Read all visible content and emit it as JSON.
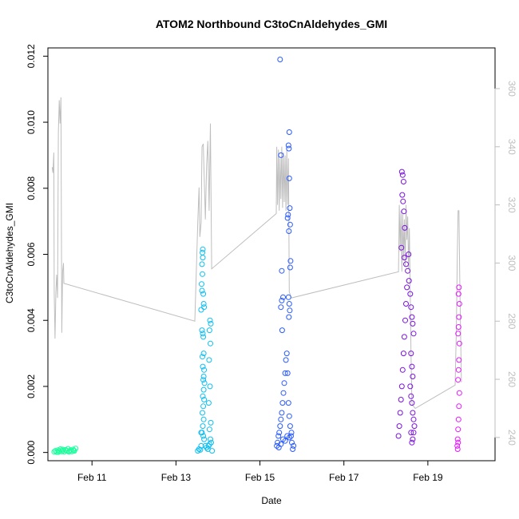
{
  "chart_data": {
    "type": "scatter",
    "title": "ATOM2 Northbound C3toCnAldehydes_GMI",
    "xlabel": "Date",
    "ylabel": "C3toCnAldehydes_GMI",
    "x_unit": "day of February (UTC, fractional)",
    "xlim": [
      9.95,
      20.6
    ],
    "ylim": [
      -0.00025,
      0.01225
    ],
    "y2lim": [
      232,
      374
    ],
    "x_ticks": [
      {
        "value": 11,
        "label": "Feb 11"
      },
      {
        "value": 13,
        "label": "Feb 13"
      },
      {
        "value": 15,
        "label": "Feb 15"
      },
      {
        "value": 17,
        "label": "Feb 17"
      },
      {
        "value": 19,
        "label": "Feb 19"
      }
    ],
    "y_ticks": [
      {
        "value": 0.0,
        "label": "0.000"
      },
      {
        "value": 0.002,
        "label": "0.002"
      },
      {
        "value": 0.004,
        "label": "0.004"
      },
      {
        "value": 0.006,
        "label": "0.006"
      },
      {
        "value": 0.008,
        "label": "0.008"
      },
      {
        "value": 0.01,
        "label": "0.010"
      },
      {
        "value": 0.012,
        "label": "0.012"
      }
    ],
    "y2_ticks": [
      {
        "value": 240,
        "label": "240"
      },
      {
        "value": 260,
        "label": "260"
      },
      {
        "value": 280,
        "label": "280"
      },
      {
        "value": 300,
        "label": "300"
      },
      {
        "value": 320,
        "label": "320"
      },
      {
        "value": 340,
        "label": "340"
      },
      {
        "value": 360,
        "label": "360"
      }
    ],
    "grid": false,
    "colors": {
      "axis": "#000000",
      "secondary_axis": "#bebebe",
      "secondary_series": "#bebebe"
    },
    "flights": [
      {
        "color": "#1aff9c",
        "points": [
          [
            10.1,
            2e-05
          ],
          [
            10.13,
            5e-05
          ],
          [
            10.16,
            1e-05
          ],
          [
            10.19,
            7e-05
          ],
          [
            10.22,
            4e-05
          ],
          [
            10.25,
            0.0001
          ],
          [
            10.28,
            3e-05
          ],
          [
            10.31,
            6e-05
          ],
          [
            10.34,
            2e-05
          ],
          [
            10.37,
            8e-05
          ],
          [
            10.4,
            5e-05
          ],
          [
            10.43,
            0.00011
          ],
          [
            10.46,
            4e-05
          ],
          [
            10.49,
            7e-05
          ],
          [
            10.52,
            3e-05
          ],
          [
            10.55,
            9e-05
          ],
          [
            10.58,
            5e-05
          ],
          [
            10.61,
            0.00012
          ],
          [
            10.2,
            1e-05
          ],
          [
            10.3,
            9e-05
          ],
          [
            10.45,
            2e-05
          ],
          [
            10.56,
            6e-05
          ]
        ]
      },
      {
        "color": "#0fbff0",
        "points": [
          [
            13.52,
            5e-05
          ],
          [
            13.55,
            0.0001
          ],
          [
            13.58,
            8e-05
          ],
          [
            13.6,
            0.0002
          ],
          [
            13.6,
            0.0006
          ],
          [
            13.6,
            0.00432
          ],
          [
            13.61,
            0.0051
          ],
          [
            13.62,
            0.0057
          ],
          [
            13.63,
            0.00605
          ],
          [
            13.64,
            0.00615
          ],
          [
            13.64,
            0.0059
          ],
          [
            13.63,
            0.0054
          ],
          [
            13.62,
            0.0049
          ],
          [
            13.65,
            0.0048
          ],
          [
            13.66,
            0.0045
          ],
          [
            13.67,
            0.0044
          ],
          [
            13.62,
            0.0037
          ],
          [
            13.64,
            0.0036
          ],
          [
            13.65,
            0.0035
          ],
          [
            13.63,
            0.0029
          ],
          [
            13.66,
            0.003
          ],
          [
            13.64,
            0.0026
          ],
          [
            13.67,
            0.0025
          ],
          [
            13.66,
            0.0023
          ],
          [
            13.65,
            0.0022
          ],
          [
            13.68,
            0.0021
          ],
          [
            13.66,
            0.0019
          ],
          [
            13.64,
            0.0017
          ],
          [
            13.67,
            0.0016
          ],
          [
            13.65,
            0.0014
          ],
          [
            13.63,
            0.0012
          ],
          [
            13.66,
            0.001
          ],
          [
            13.64,
            0.0008
          ],
          [
            13.62,
            0.0006
          ],
          [
            13.65,
            0.0005
          ],
          [
            13.67,
            0.0004
          ],
          [
            13.7,
            0.0002
          ],
          [
            13.73,
            0.00015
          ],
          [
            13.76,
            0.0001
          ],
          [
            13.78,
            0.0002
          ],
          [
            13.8,
            0.00025
          ],
          [
            13.82,
            0.0004
          ],
          [
            13.8,
            0.0007
          ],
          [
            13.83,
            0.0009
          ],
          [
            13.78,
            0.0015
          ],
          [
            13.81,
            0.002
          ],
          [
            13.79,
            0.0028
          ],
          [
            13.82,
            0.0033
          ],
          [
            13.8,
            0.0037
          ],
          [
            13.83,
            0.0039
          ],
          [
            13.81,
            0.004
          ],
          [
            13.84,
            0.0003
          ],
          [
            13.86,
            5e-05
          ]
        ]
      },
      {
        "color": "#2a5bff",
        "points": [
          [
            15.4,
            0.0002
          ],
          [
            15.42,
            0.0003
          ],
          [
            15.44,
            0.0005
          ],
          [
            15.46,
            0.0006
          ],
          [
            15.48,
            0.0008
          ],
          [
            15.5,
            0.001
          ],
          [
            15.52,
            0.0012
          ],
          [
            15.54,
            0.0015
          ],
          [
            15.56,
            0.0018
          ],
          [
            15.58,
            0.0021
          ],
          [
            15.6,
            0.0024
          ],
          [
            15.62,
            0.0028
          ],
          [
            15.64,
            0.003
          ],
          [
            15.66,
            0.0024
          ],
          [
            15.68,
            0.0015
          ],
          [
            15.7,
            0.0011
          ],
          [
            15.72,
            0.0008
          ],
          [
            15.74,
            0.0005
          ],
          [
            15.76,
            0.0003
          ],
          [
            15.78,
            0.0001
          ],
          [
            15.8,
            0.0002
          ],
          [
            15.45,
            0.00015
          ],
          [
            15.5,
            0.00025
          ],
          [
            15.55,
            0.0004
          ],
          [
            15.6,
            0.00035
          ],
          [
            15.65,
            0.0005
          ],
          [
            15.7,
            0.00045
          ],
          [
            15.75,
            0.0006
          ],
          [
            15.48,
            0.0119
          ],
          [
            15.5,
            0.009
          ],
          [
            15.52,
            0.0055
          ],
          [
            15.5,
            0.0044
          ],
          [
            15.52,
            0.0046
          ],
          [
            15.55,
            0.0047
          ],
          [
            15.53,
            0.0037
          ],
          [
            15.7,
            0.0097
          ],
          [
            15.68,
            0.0093
          ],
          [
            15.69,
            0.0092
          ],
          [
            15.7,
            0.0083
          ],
          [
            15.71,
            0.0074
          ],
          [
            15.67,
            0.0072
          ],
          [
            15.66,
            0.0071
          ],
          [
            15.72,
            0.0069
          ],
          [
            15.69,
            0.0067
          ],
          [
            15.73,
            0.0058
          ],
          [
            15.72,
            0.0056
          ],
          [
            15.68,
            0.0047
          ],
          [
            15.7,
            0.0045
          ],
          [
            15.71,
            0.0043
          ],
          [
            15.69,
            0.0041
          ]
        ]
      },
      {
        "color": "#7b12e0",
        "points": [
          [
            18.3,
            0.0005
          ],
          [
            18.32,
            0.0008
          ],
          [
            18.34,
            0.0012
          ],
          [
            18.36,
            0.0016
          ],
          [
            18.38,
            0.002
          ],
          [
            18.4,
            0.0025
          ],
          [
            18.42,
            0.003
          ],
          [
            18.44,
            0.0035
          ],
          [
            18.46,
            0.004
          ],
          [
            18.48,
            0.0045
          ],
          [
            18.5,
            0.005
          ],
          [
            18.52,
            0.0055
          ],
          [
            18.54,
            0.006
          ],
          [
            18.38,
            0.0085
          ],
          [
            18.4,
            0.0084
          ],
          [
            18.42,
            0.0082
          ],
          [
            18.39,
            0.0078
          ],
          [
            18.41,
            0.0076
          ],
          [
            18.43,
            0.0073
          ],
          [
            18.45,
            0.0068
          ],
          [
            18.37,
            0.0062
          ],
          [
            18.44,
            0.0059
          ],
          [
            18.48,
            0.0057
          ],
          [
            18.55,
            0.0052
          ],
          [
            18.58,
            0.0048
          ],
          [
            18.6,
            0.0044
          ],
          [
            18.62,
            0.0041
          ],
          [
            18.64,
            0.0039
          ],
          [
            18.66,
            0.0036
          ],
          [
            18.6,
            0.003
          ],
          [
            18.62,
            0.0026
          ],
          [
            18.64,
            0.0023
          ],
          [
            18.58,
            0.002
          ],
          [
            18.6,
            0.0017
          ],
          [
            18.62,
            0.0015
          ],
          [
            18.64,
            0.0012
          ],
          [
            18.66,
            0.001
          ],
          [
            18.68,
            0.0008
          ],
          [
            18.66,
            0.0006
          ],
          [
            18.64,
            0.0004
          ],
          [
            18.62,
            0.0003
          ],
          [
            18.6,
            0.0006
          ]
        ]
      },
      {
        "color": "#e619ff",
        "points": [
          [
            19.7,
            0.0002
          ],
          [
            19.71,
            0.0004
          ],
          [
            19.72,
            0.0007
          ],
          [
            19.73,
            0.001
          ],
          [
            19.74,
            0.0014
          ],
          [
            19.75,
            0.0018
          ],
          [
            19.72,
            0.0022
          ],
          [
            19.73,
            0.0025
          ],
          [
            19.74,
            0.0028
          ],
          [
            19.75,
            0.0033
          ],
          [
            19.72,
            0.0036
          ],
          [
            19.73,
            0.0038
          ],
          [
            19.74,
            0.0041
          ],
          [
            19.75,
            0.0045
          ],
          [
            19.73,
            0.0048
          ],
          [
            19.74,
            0.005
          ],
          [
            19.72,
            0.0003
          ],
          [
            19.71,
            0.0001
          ]
        ]
      }
    ],
    "secondary_series": [
      [
        10.05,
        333
      ],
      [
        10.07,
        331
      ],
      [
        10.09,
        338
      ],
      [
        10.1,
        290
      ],
      [
        10.12,
        274
      ],
      [
        10.14,
        290
      ],
      [
        10.16,
        296
      ],
      [
        10.18,
        288
      ],
      [
        10.2,
        345
      ],
      [
        10.22,
        356
      ],
      [
        10.24,
        348
      ],
      [
        10.26,
        357
      ],
      [
        10.27,
        320
      ],
      [
        10.28,
        276
      ],
      [
        10.3,
        297
      ],
      [
        10.32,
        300
      ],
      [
        10.33,
        293
      ],
      [
        13.45,
        280
      ],
      [
        13.52,
        314
      ],
      [
        13.55,
        326
      ],
      [
        13.57,
        309
      ],
      [
        13.6,
        314
      ],
      [
        13.62,
        340
      ],
      [
        13.65,
        341
      ],
      [
        13.7,
        315
      ],
      [
        13.73,
        334
      ],
      [
        13.76,
        342
      ],
      [
        13.79,
        318
      ],
      [
        13.82,
        348
      ],
      [
        13.85,
        298
      ],
      [
        15.39,
        317
      ],
      [
        15.4,
        340
      ],
      [
        15.42,
        320
      ],
      [
        15.44,
        339
      ],
      [
        15.46,
        318
      ],
      [
        15.48,
        336
      ],
      [
        15.5,
        322
      ],
      [
        15.52,
        340
      ],
      [
        15.54,
        319
      ],
      [
        15.56,
        338
      ],
      [
        15.58,
        321
      ],
      [
        15.6,
        337
      ],
      [
        15.62,
        318
      ],
      [
        15.64,
        339
      ],
      [
        15.66,
        320
      ],
      [
        15.68,
        336
      ],
      [
        15.7,
        290
      ],
      [
        15.75,
        288
      ],
      [
        18.3,
        297
      ],
      [
        18.32,
        320
      ],
      [
        18.34,
        304
      ],
      [
        18.36,
        318
      ],
      [
        18.38,
        297
      ],
      [
        18.4,
        317
      ],
      [
        18.42,
        301
      ],
      [
        18.44,
        315
      ],
      [
        18.46,
        299
      ],
      [
        18.48,
        320
      ],
      [
        18.5,
        308
      ],
      [
        18.52,
        316
      ],
      [
        18.54,
        298
      ],
      [
        18.56,
        312
      ],
      [
        18.58,
        289
      ],
      [
        18.6,
        268
      ],
      [
        18.62,
        252
      ],
      [
        18.64,
        251
      ],
      [
        18.7,
        250
      ],
      [
        19.65,
        258
      ],
      [
        19.68,
        278
      ],
      [
        19.7,
        302
      ],
      [
        19.72,
        318
      ],
      [
        19.74,
        318
      ],
      [
        19.76,
        295
      ],
      [
        19.78,
        275
      ],
      [
        19.8,
        259
      ]
    ]
  }
}
